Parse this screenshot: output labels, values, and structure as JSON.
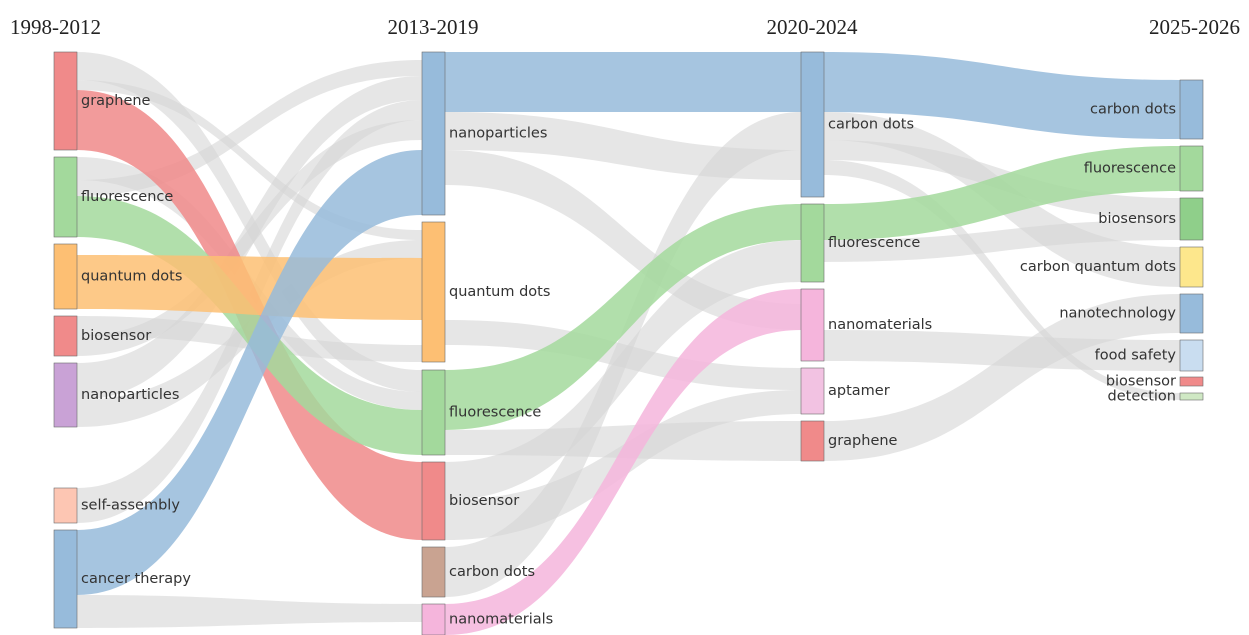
{
  "columns": [
    {
      "title": "1998-2012",
      "nodes": [
        "graphene",
        "fluorescence",
        "quantum dots",
        "biosensor",
        "nanoparticles",
        "self-assembly",
        "cancer therapy"
      ]
    },
    {
      "title": "2013-2019",
      "nodes": [
        "nanoparticles",
        "quantum dots",
        "fluorescence",
        "biosensor",
        "carbon dots",
        "nanomaterials"
      ]
    },
    {
      "title": "2020-2024",
      "nodes": [
        "carbon dots",
        "fluorescence",
        "nanomaterials",
        "aptamer",
        "graphene"
      ]
    },
    {
      "title": "2025-2026",
      "nodes": [
        "carbon dots",
        "fluorescence",
        "biosensors",
        "carbon quantum dots",
        "nanotechnology",
        "food safety",
        "biosensor",
        "detection"
      ]
    }
  ]
}
